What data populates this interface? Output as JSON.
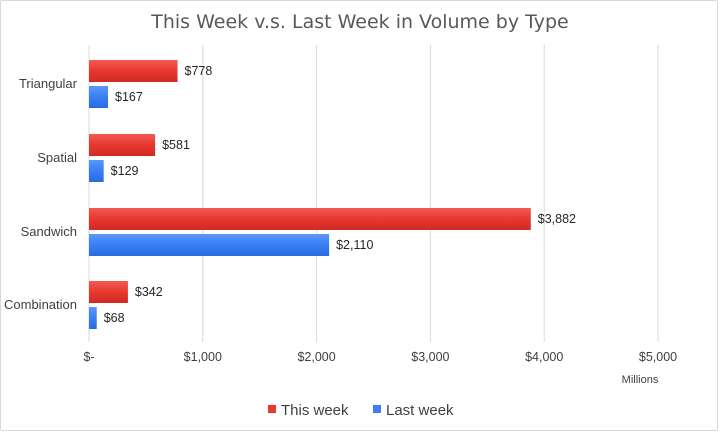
{
  "chart_data": {
    "type": "bar",
    "orientation": "horizontal",
    "title": "This Week v.s. Last Week in Volume by Type",
    "categories": [
      "Triangular",
      "Spatial",
      "Sandwich",
      "Combination"
    ],
    "series": [
      {
        "name": "This week",
        "color": "#e8372f",
        "values": [
          778,
          581,
          3882,
          342
        ],
        "labels": [
          "$778",
          "$581",
          "$3,882",
          "$342"
        ]
      },
      {
        "name": "Last week",
        "color": "#3a7ff6",
        "values": [
          167,
          129,
          2110,
          68
        ],
        "labels": [
          "$167",
          "$129",
          "$2,110",
          "$68"
        ]
      }
    ],
    "xlim": [
      0,
      5000
    ],
    "ticks": [
      0,
      1000,
      2000,
      3000,
      4000,
      5000
    ],
    "tick_labels": [
      "$-",
      "$1,000",
      "$2,000",
      "$3,000",
      "$4,000",
      "$5,000"
    ],
    "unit_label": "Millions",
    "grid": true,
    "legend_position": "bottom"
  }
}
